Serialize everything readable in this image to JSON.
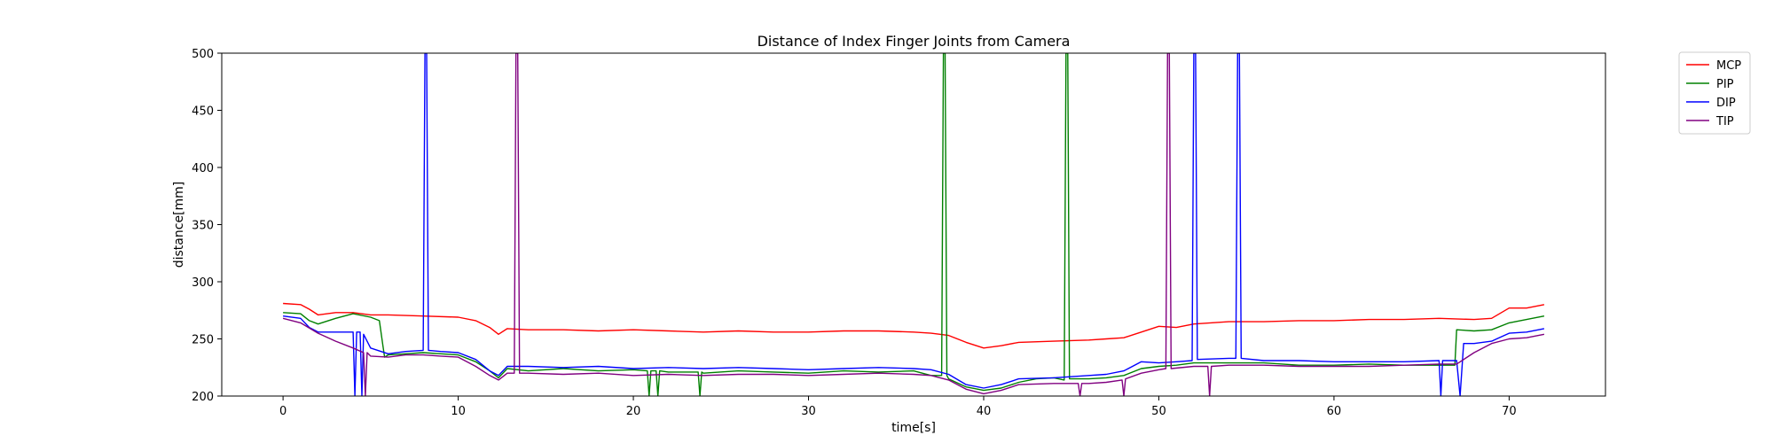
{
  "chart_data": {
    "type": "line",
    "title": "Distance of Index Finger Joints from Camera",
    "xlabel": "time[s]",
    "ylabel": "distance[mm]",
    "xlim": [
      -3.5,
      75.5
    ],
    "ylim": [
      200,
      500
    ],
    "xticks": [
      0,
      10,
      20,
      30,
      40,
      50,
      60,
      70
    ],
    "yticks": [
      200,
      250,
      300,
      350,
      400,
      450,
      500
    ],
    "legend_placement": "outside-top-right",
    "grid": false,
    "series": [
      {
        "name": "MCP",
        "color": "#ff0000",
        "points": [
          [
            0,
            281
          ],
          [
            1,
            280
          ],
          [
            1.5,
            276
          ],
          [
            2,
            271
          ],
          [
            3,
            273
          ],
          [
            4,
            273
          ],
          [
            5,
            271
          ],
          [
            6,
            271
          ],
          [
            8,
            270
          ],
          [
            10,
            269
          ],
          [
            11,
            266
          ],
          [
            11.8,
            260
          ],
          [
            12.3,
            254
          ],
          [
            12.8,
            259
          ],
          [
            14,
            258
          ],
          [
            16,
            258
          ],
          [
            18,
            257
          ],
          [
            20,
            258
          ],
          [
            22,
            257
          ],
          [
            24,
            256
          ],
          [
            26,
            257
          ],
          [
            28,
            256
          ],
          [
            30,
            256
          ],
          [
            32,
            257
          ],
          [
            34,
            257
          ],
          [
            36,
            256
          ],
          [
            37,
            255
          ],
          [
            38,
            253
          ],
          [
            39,
            247
          ],
          [
            40,
            242
          ],
          [
            41,
            244
          ],
          [
            42,
            247
          ],
          [
            44,
            248
          ],
          [
            46,
            249
          ],
          [
            47,
            250
          ],
          [
            48,
            251
          ],
          [
            49,
            256
          ],
          [
            50,
            261
          ],
          [
            51,
            260
          ],
          [
            52,
            263
          ],
          [
            54,
            265
          ],
          [
            56,
            265
          ],
          [
            58,
            266
          ],
          [
            60,
            266
          ],
          [
            62,
            267
          ],
          [
            64,
            267
          ],
          [
            66,
            268
          ],
          [
            68,
            267
          ],
          [
            69,
            268
          ],
          [
            70,
            277
          ],
          [
            71,
            277
          ],
          [
            72,
            280
          ]
        ]
      },
      {
        "name": "PIP",
        "color": "#008000",
        "points": [
          [
            0,
            273
          ],
          [
            1,
            272
          ],
          [
            1.5,
            266
          ],
          [
            2,
            263
          ],
          [
            3,
            268
          ],
          [
            4,
            272
          ],
          [
            5,
            269
          ],
          [
            5.5,
            266
          ],
          [
            5.7,
            244
          ],
          [
            5.8,
            234
          ],
          [
            6,
            236
          ],
          [
            7,
            237
          ],
          [
            8,
            238
          ],
          [
            9,
            237
          ],
          [
            10,
            236
          ],
          [
            11,
            230
          ],
          [
            11.8,
            222
          ],
          [
            12.3,
            216
          ],
          [
            12.8,
            224
          ],
          [
            14,
            222
          ],
          [
            16,
            224
          ],
          [
            18,
            222
          ],
          [
            20,
            223
          ],
          [
            20.8,
            222
          ],
          [
            20.9,
            200
          ],
          [
            21,
            222
          ],
          [
            21.3,
            222
          ],
          [
            21.4,
            200
          ],
          [
            21.5,
            222
          ],
          [
            22,
            221
          ],
          [
            23.7,
            221
          ],
          [
            23.8,
            200
          ],
          [
            23.9,
            221
          ],
          [
            24,
            220
          ],
          [
            26,
            222
          ],
          [
            28,
            221
          ],
          [
            30,
            220
          ],
          [
            32,
            222
          ],
          [
            34,
            221
          ],
          [
            36,
            222
          ],
          [
            37,
            218
          ],
          [
            37.6,
            218
          ],
          [
            37.7,
            500
          ],
          [
            37.8,
            500
          ],
          [
            37.9,
            218
          ],
          [
            38,
            215
          ],
          [
            39,
            208
          ],
          [
            40,
            205
          ],
          [
            41,
            207
          ],
          [
            42,
            212
          ],
          [
            43,
            215
          ],
          [
            44,
            216
          ],
          [
            44.6,
            214
          ],
          [
            44.7,
            500
          ],
          [
            44.8,
            500
          ],
          [
            44.9,
            215
          ],
          [
            46,
            215
          ],
          [
            47,
            216
          ],
          [
            48,
            218
          ],
          [
            49,
            224
          ],
          [
            50,
            226
          ],
          [
            51,
            227
          ],
          [
            52,
            229
          ],
          [
            54,
            229
          ],
          [
            56,
            229
          ],
          [
            58,
            227
          ],
          [
            60,
            227
          ],
          [
            62,
            228
          ],
          [
            64,
            227
          ],
          [
            66,
            227
          ],
          [
            66.9,
            227
          ],
          [
            67,
            258
          ],
          [
            68,
            257
          ],
          [
            69,
            258
          ],
          [
            70,
            264
          ],
          [
            71,
            267
          ],
          [
            72,
            270
          ]
        ]
      },
      {
        "name": "DIP",
        "color": "#0000ff",
        "points": [
          [
            0,
            270
          ],
          [
            1,
            268
          ],
          [
            1.5,
            260
          ],
          [
            2,
            256
          ],
          [
            3,
            256
          ],
          [
            4,
            256
          ],
          [
            4.1,
            200
          ],
          [
            4.2,
            256
          ],
          [
            4.4,
            256
          ],
          [
            4.5,
            200
          ],
          [
            4.6,
            254
          ],
          [
            5,
            242
          ],
          [
            6,
            237
          ],
          [
            7,
            239
          ],
          [
            8,
            240
          ],
          [
            8.1,
            500
          ],
          [
            8.2,
            500
          ],
          [
            8.3,
            240
          ],
          [
            9,
            239
          ],
          [
            10,
            238
          ],
          [
            11,
            232
          ],
          [
            11.8,
            222
          ],
          [
            12.3,
            218
          ],
          [
            12.8,
            226
          ],
          [
            14,
            226
          ],
          [
            16,
            225
          ],
          [
            18,
            226
          ],
          [
            20,
            224
          ],
          [
            22,
            225
          ],
          [
            24,
            224
          ],
          [
            26,
            225
          ],
          [
            28,
            224
          ],
          [
            30,
            223
          ],
          [
            32,
            224
          ],
          [
            34,
            225
          ],
          [
            36,
            224
          ],
          [
            37,
            223
          ],
          [
            38,
            219
          ],
          [
            39,
            210
          ],
          [
            40,
            207
          ],
          [
            41,
            210
          ],
          [
            42,
            215
          ],
          [
            44,
            216
          ],
          [
            46,
            218
          ],
          [
            47,
            219
          ],
          [
            48,
            222
          ],
          [
            49,
            230
          ],
          [
            50,
            229
          ],
          [
            51,
            230
          ],
          [
            51.9,
            231
          ],
          [
            52,
            500
          ],
          [
            52.1,
            500
          ],
          [
            52.2,
            232
          ],
          [
            54,
            233
          ],
          [
            54.4,
            233
          ],
          [
            54.5,
            500
          ],
          [
            54.6,
            500
          ],
          [
            54.7,
            233
          ],
          [
            56,
            231
          ],
          [
            58,
            231
          ],
          [
            60,
            230
          ],
          [
            62,
            230
          ],
          [
            64,
            230
          ],
          [
            66,
            231
          ],
          [
            66.1,
            200
          ],
          [
            66.2,
            231
          ],
          [
            67,
            231
          ],
          [
            67.2,
            200
          ],
          [
            67.4,
            246
          ],
          [
            68,
            246
          ],
          [
            69,
            248
          ],
          [
            70,
            255
          ],
          [
            71,
            256
          ],
          [
            72,
            259
          ]
        ]
      },
      {
        "name": "TIP",
        "color": "#800080",
        "points": [
          [
            0,
            268
          ],
          [
            1,
            264
          ],
          [
            2,
            255
          ],
          [
            3,
            248
          ],
          [
            4,
            242
          ],
          [
            4.6,
            238
          ],
          [
            4.7,
            200
          ],
          [
            4.8,
            238
          ],
          [
            5,
            235
          ],
          [
            6,
            234
          ],
          [
            7,
            236
          ],
          [
            8,
            236
          ],
          [
            9,
            235
          ],
          [
            10,
            234
          ],
          [
            11,
            226
          ],
          [
            11.8,
            218
          ],
          [
            12.3,
            214
          ],
          [
            12.8,
            220
          ],
          [
            13.2,
            220
          ],
          [
            13.3,
            500
          ],
          [
            13.4,
            500
          ],
          [
            13.5,
            220
          ],
          [
            14,
            220
          ],
          [
            16,
            219
          ],
          [
            18,
            220
          ],
          [
            20,
            218
          ],
          [
            22,
            219
          ],
          [
            24,
            218
          ],
          [
            26,
            219
          ],
          [
            28,
            219
          ],
          [
            30,
            218
          ],
          [
            32,
            219
          ],
          [
            34,
            220
          ],
          [
            36,
            219
          ],
          [
            37,
            218
          ],
          [
            38,
            214
          ],
          [
            39,
            206
          ],
          [
            40,
            202
          ],
          [
            41,
            205
          ],
          [
            42,
            210
          ],
          [
            44,
            211
          ],
          [
            45.4,
            211
          ],
          [
            45.5,
            200
          ],
          [
            45.6,
            211
          ],
          [
            46,
            211
          ],
          [
            47,
            212
          ],
          [
            47.9,
            214
          ],
          [
            48,
            200
          ],
          [
            48.1,
            215
          ],
          [
            49,
            220
          ],
          [
            50,
            223
          ],
          [
            50.4,
            224
          ],
          [
            50.5,
            500
          ],
          [
            50.6,
            500
          ],
          [
            50.7,
            224
          ],
          [
            52,
            226
          ],
          [
            52.8,
            226
          ],
          [
            52.9,
            200
          ],
          [
            53,
            226
          ],
          [
            54,
            227
          ],
          [
            56,
            227
          ],
          [
            58,
            226
          ],
          [
            60,
            226
          ],
          [
            62,
            226
          ],
          [
            64,
            227
          ],
          [
            66,
            228
          ],
          [
            67,
            228
          ],
          [
            68,
            238
          ],
          [
            69,
            246
          ],
          [
            70,
            250
          ],
          [
            71,
            251
          ],
          [
            72,
            254
          ]
        ]
      }
    ]
  }
}
